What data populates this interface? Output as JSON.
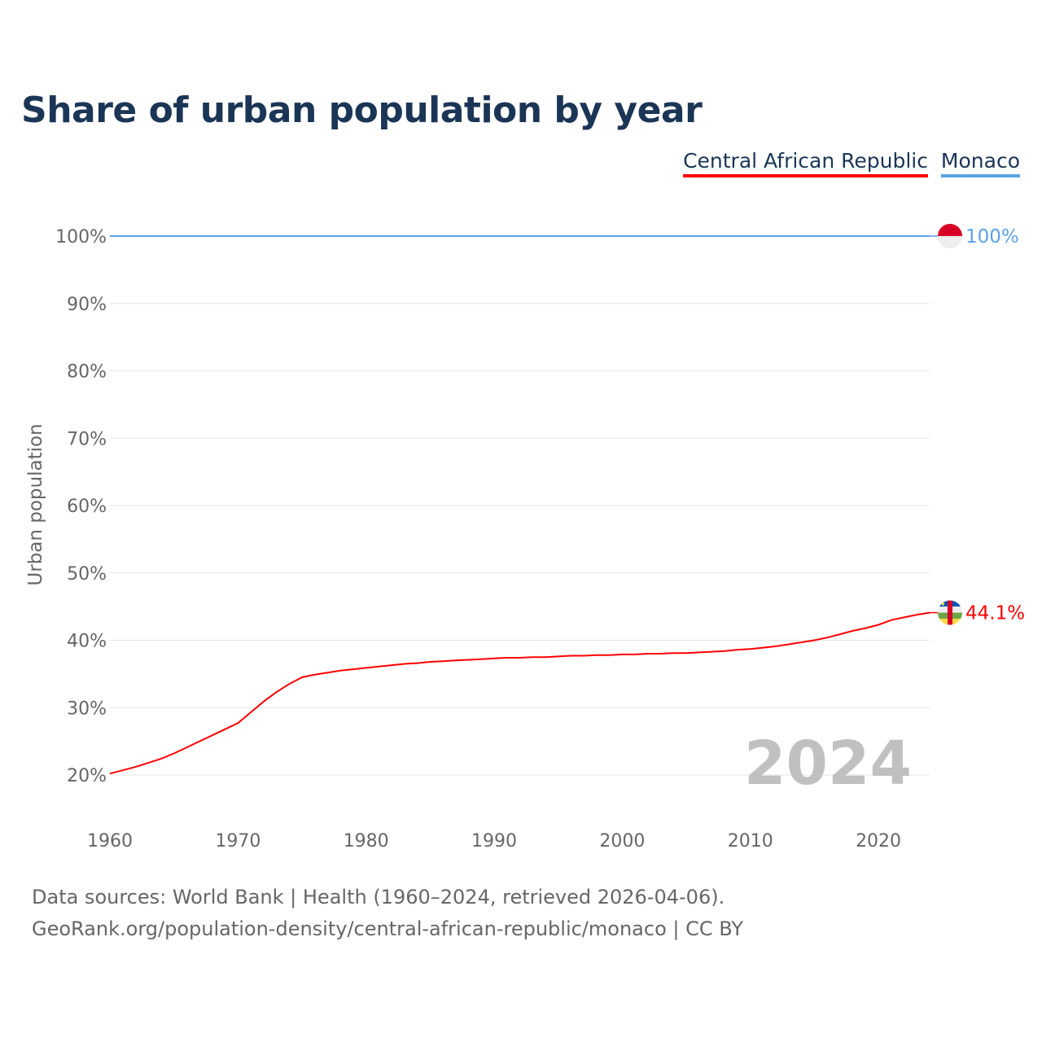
{
  "chart_data": {
    "type": "line",
    "title": "Share of urban population by year",
    "xlabel": "",
    "ylabel": "Urban population",
    "ylim": [
      20,
      100
    ],
    "xlim": [
      1960,
      2024
    ],
    "y_ticks": [
      "20%",
      "30%",
      "40%",
      "50%",
      "60%",
      "70%",
      "80%",
      "90%",
      "100%"
    ],
    "y_tick_values": [
      20,
      30,
      40,
      50,
      60,
      70,
      80,
      90,
      100
    ],
    "x_ticks": [
      "1960",
      "1970",
      "1980",
      "1990",
      "2000",
      "2010",
      "2020"
    ],
    "x_tick_values": [
      1960,
      1970,
      1980,
      1990,
      2000,
      2010,
      2020
    ],
    "grid": true,
    "legend_placement": "top-right",
    "year_watermark": "2024",
    "x": [
      1960,
      1961,
      1962,
      1963,
      1964,
      1965,
      1966,
      1967,
      1968,
      1969,
      1970,
      1971,
      1972,
      1973,
      1974,
      1975,
      1976,
      1977,
      1978,
      1979,
      1980,
      1981,
      1982,
      1983,
      1984,
      1985,
      1986,
      1987,
      1988,
      1989,
      1990,
      1991,
      1992,
      1993,
      1994,
      1995,
      1996,
      1997,
      1998,
      1999,
      2000,
      2001,
      2002,
      2003,
      2004,
      2005,
      2006,
      2007,
      2008,
      2009,
      2010,
      2011,
      2012,
      2013,
      2014,
      2015,
      2016,
      2017,
      2018,
      2019,
      2020,
      2021,
      2022,
      2023,
      2024
    ],
    "series": [
      {
        "name": "Central African Republic",
        "color": "#ff0000",
        "end_label": "44.1%",
        "values": [
          20.2,
          20.7,
          21.2,
          21.8,
          22.4,
          23.2,
          24.1,
          25.0,
          25.9,
          26.8,
          27.7,
          29.3,
          30.9,
          32.3,
          33.5,
          34.5,
          34.9,
          35.2,
          35.5,
          35.7,
          35.9,
          36.1,
          36.3,
          36.5,
          36.6,
          36.8,
          36.9,
          37.0,
          37.1,
          37.2,
          37.3,
          37.4,
          37.4,
          37.5,
          37.5,
          37.6,
          37.7,
          37.7,
          37.8,
          37.8,
          37.9,
          37.9,
          38.0,
          38.0,
          38.1,
          38.1,
          38.2,
          38.3,
          38.4,
          38.6,
          38.7,
          38.9,
          39.1,
          39.4,
          39.7,
          40.0,
          40.4,
          40.9,
          41.4,
          41.8,
          42.3,
          43.0,
          43.4,
          43.8,
          44.1
        ]
      },
      {
        "name": "Monaco",
        "color": "#5ba3e6",
        "end_label": "100%",
        "values": [
          100,
          100,
          100,
          100,
          100,
          100,
          100,
          100,
          100,
          100,
          100,
          100,
          100,
          100,
          100,
          100,
          100,
          100,
          100,
          100,
          100,
          100,
          100,
          100,
          100,
          100,
          100,
          100,
          100,
          100,
          100,
          100,
          100,
          100,
          100,
          100,
          100,
          100,
          100,
          100,
          100,
          100,
          100,
          100,
          100,
          100,
          100,
          100,
          100,
          100,
          100,
          100,
          100,
          100,
          100,
          100,
          100,
          100,
          100,
          100,
          100,
          100,
          100,
          100,
          100
        ]
      }
    ]
  },
  "footer": {
    "line1": "Data sources: World Bank | Health (1960–2024, retrieved 2026-04-06).",
    "line2": "GeoRank.org/population-density/central-african-republic/monaco | CC BY"
  }
}
